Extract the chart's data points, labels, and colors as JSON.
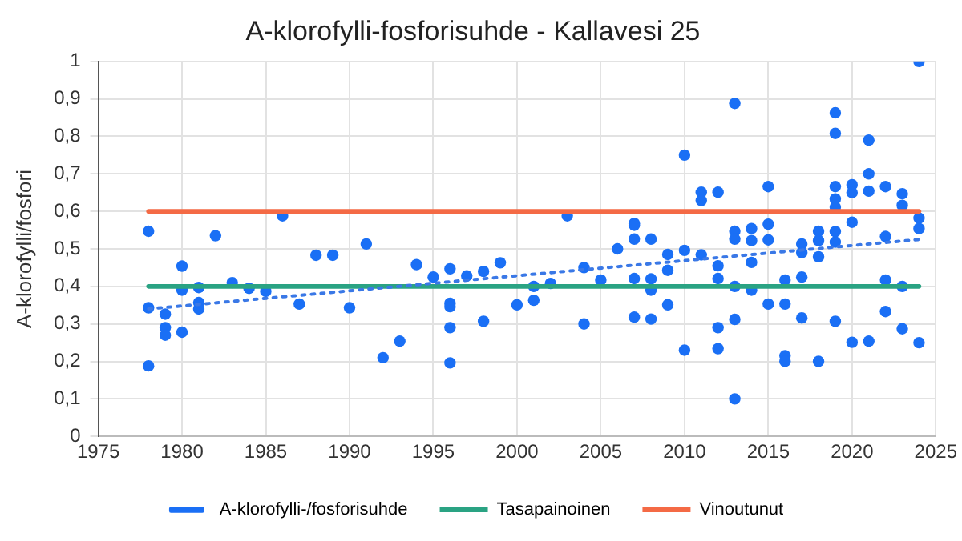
{
  "chart_data": {
    "type": "scatter",
    "title": "A-klorofylli-fosforisuhde - Kallavesi 25",
    "ylabel": "A-klorofylli/fosfori",
    "xlim": [
      1975,
      2025
    ],
    "xticks": [
      1975,
      1980,
      1985,
      1990,
      1995,
      2000,
      2005,
      2010,
      2015,
      2020,
      2025
    ],
    "ylim": [
      0,
      1
    ],
    "yticks": [
      0,
      {
        "value": 0.1,
        "label": "0,1"
      },
      {
        "value": 0.2,
        "label": "0,2"
      },
      {
        "value": 0.3,
        "label": "0,3"
      },
      {
        "value": 0.4,
        "label": "0,4"
      },
      {
        "value": 0.5,
        "label": "0,5"
      },
      {
        "value": 0.6,
        "label": "0,6"
      },
      {
        "value": 0.7,
        "label": "0,7"
      },
      {
        "value": 0.8,
        "label": "0,8"
      },
      {
        "value": 0.9,
        "label": "0,9"
      },
      1
    ],
    "grid": true,
    "legend": "bottom",
    "series": [
      {
        "name": "A-klorofylli-/fosforisuhde",
        "color": "#1a6ff5",
        "marker": "circle",
        "x": [
          1978,
          1978,
          1978,
          1979,
          1979,
          1979,
          1980,
          1980,
          1980,
          1981,
          1981,
          1981,
          1982,
          1983,
          1984,
          1985,
          1986,
          1987,
          1988,
          1989,
          1990,
          1991,
          1992,
          1993,
          1994,
          1995,
          1996,
          1996,
          1996,
          1996,
          1996,
          1997,
          1998,
          1998,
          1999,
          2000,
          2001,
          2001,
          2002,
          2003,
          2004,
          2004,
          2005,
          2006,
          2007,
          2007,
          2007,
          2007,
          2007,
          2008,
          2008,
          2008,
          2008,
          2009,
          2009,
          2009,
          2010,
          2010,
          2010,
          2011,
          2011,
          2011,
          2012,
          2012,
          2012,
          2012,
          2012,
          2013,
          2013,
          2013,
          2013,
          2013,
          2013,
          2014,
          2014,
          2014,
          2014,
          2015,
          2015,
          2015,
          2015,
          2016,
          2016,
          2016,
          2016,
          2017,
          2017,
          2017,
          2017,
          2018,
          2018,
          2018,
          2018,
          2019,
          2019,
          2019,
          2019,
          2019,
          2019,
          2019,
          2019,
          2020,
          2020,
          2020,
          2020,
          2021,
          2021,
          2021,
          2021,
          2022,
          2022,
          2022,
          2022,
          2023,
          2023,
          2023,
          2023,
          2024,
          2024,
          2024,
          2024
        ],
        "values": [
          0.547,
          0.343,
          0.188,
          0.326,
          0.29,
          0.27,
          0.454,
          0.39,
          0.278,
          0.397,
          0.357,
          0.34,
          0.535,
          0.41,
          0.395,
          0.387,
          0.588,
          0.353,
          0.483,
          0.483,
          0.343,
          0.513,
          0.21,
          0.254,
          0.458,
          0.425,
          0.447,
          0.355,
          0.346,
          0.29,
          0.196,
          0.428,
          0.44,
          0.307,
          0.463,
          0.351,
          0.4,
          0.363,
          0.408,
          0.588,
          0.45,
          0.3,
          0.417,
          0.5,
          0.568,
          0.563,
          0.526,
          0.421,
          0.318,
          0.526,
          0.42,
          0.39,
          0.313,
          0.485,
          0.443,
          0.351,
          0.75,
          0.496,
          0.23,
          0.651,
          0.629,
          0.484,
          0.651,
          0.455,
          0.421,
          0.29,
          0.234,
          0.888,
          0.547,
          0.526,
          0.4,
          0.312,
          0.1,
          0.554,
          0.522,
          0.464,
          0.39,
          0.666,
          0.566,
          0.524,
          0.353,
          0.417,
          0.353,
          0.215,
          0.2,
          0.513,
          0.49,
          0.425,
          0.316,
          0.547,
          0.522,
          0.479,
          0.2,
          0.863,
          0.808,
          0.666,
          0.633,
          0.611,
          0.546,
          0.518,
          0.307,
          0.671,
          0.65,
          0.571,
          0.251,
          0.79,
          0.7,
          0.654,
          0.254,
          0.666,
          0.533,
          0.417,
          0.333,
          0.647,
          0.616,
          0.4,
          0.287,
          1.0,
          0.582,
          0.554,
          0.25
        ]
      },
      {
        "type": "line",
        "color": "#3a78e6",
        "line_style": "dotted",
        "marker": "none",
        "x": [
          1978,
          2024
        ],
        "values": [
          0.34,
          0.525
        ]
      },
      {
        "name": "Tasapainoinen",
        "type": "line",
        "color": "#2aa383",
        "line_style": "solid",
        "marker": "none",
        "x": [
          1978,
          2024
        ],
        "values": [
          0.4,
          0.4
        ]
      },
      {
        "name": "Vinoutunut",
        "type": "line",
        "color": "#f46a45",
        "line_style": "solid",
        "marker": "none",
        "x": [
          1978,
          2024
        ],
        "values": [
          0.6,
          0.6
        ]
      }
    ]
  }
}
